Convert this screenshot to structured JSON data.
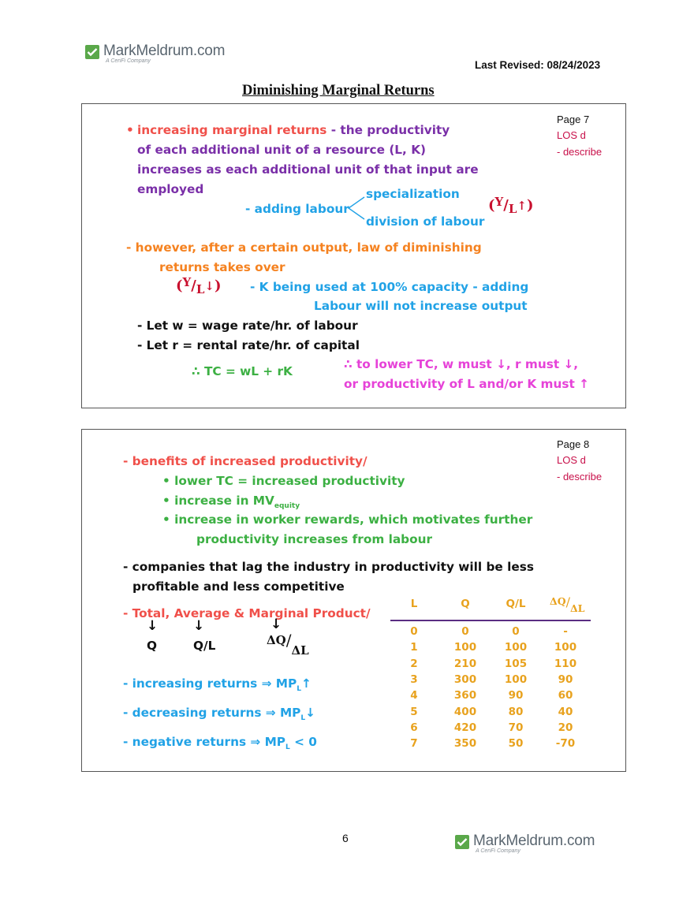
{
  "header": {
    "logo_name": "MarkMeldrum.com",
    "logo_sub": "A CeriFi Company",
    "last_revised": "Last Revised: 08/24/2023",
    "title": "Diminishing Marginal Returns"
  },
  "colors": {
    "red": "#f0504a",
    "purple": "#7a2fa8",
    "blue": "#21a2e6",
    "orange": "#f58220",
    "green": "#3cb043",
    "magenta": "#e642d8",
    "darkred": "#c8102e",
    "lossred": "#c8104a",
    "tableorange": "#e8a21e",
    "rulepurple": "#5a2d82",
    "logogreen": "#5aa84a"
  },
  "panel1": {
    "page": "Page 7",
    "los": "LOS d",
    "describe": "- describe",
    "bullet": "•",
    "inc_marg": "increasing marginal returns",
    "dash_the_prod": " - the productivity",
    "line2": "of each additional unit of a resource (L, K)",
    "line3": "increases as each additional unit of that input are",
    "line4": "employed",
    "adding_labour": "- adding labour",
    "specialization": "specialization",
    "division": "division of labour",
    "yl_up": {
      "y": "Y",
      "slash": "/",
      "l": "L",
      "arrow": "↑",
      "open": "(",
      "close": ")"
    },
    "however1": "- however, after a certain output, law of diminishing",
    "however2": "returns takes over",
    "yl_down": {
      "y": "Y",
      "slash": "/",
      "l": "L",
      "arrow": "↓",
      "open": "(",
      "close": ")"
    },
    "k_used1": "- K being used at 100% capacity - adding",
    "k_used2": "Labour will not increase output",
    "let_w": "- Let w = wage rate/hr. of labour",
    "let_r": "- Let r = rental rate/hr. of capital",
    "tc": "∴ TC = wL + rK",
    "lower1": "∴ to lower TC, w must ↓, r must ↓,",
    "lower2": "or productivity of L and/or K must ↑"
  },
  "panel2": {
    "page": "Page 8",
    "los": "LOS d",
    "describe": "- describe",
    "benefits": "- benefits of increased productivity/",
    "b1": "• lower TC = increased productivity",
    "b2_main": "• increase in MV",
    "b2_sub": "equity",
    "b3a": "• increase in worker rewards, which motivates further",
    "b3b": "productivity increases from labour",
    "companies1": "- companies that lag the industry in productivity will be less",
    "companies2": "profitable and less competitive",
    "tamp": "- Total, Average & Marginal Product/",
    "arrow": "↓",
    "q": "Q",
    "ql": "Q/L",
    "dq": "ΔQ",
    "slash": "/",
    "dl": "ΔL",
    "inc_ret": "- increasing returns ⇒ MP",
    "inc_sym": "↑",
    "dec_ret": "- decreasing returns ⇒ MP",
    "dec_sym": "↓",
    "neg_ret": "- negative returns ⇒ MP",
    "neg_sym": "< 0",
    "mp_sub": "L"
  },
  "table": {
    "headers": [
      "L",
      "Q",
      "Q/L"
    ],
    "header_dq": "ΔQ",
    "header_slash": "/",
    "header_dl": "ΔL",
    "rows": [
      [
        "0",
        "0",
        "0",
        "-"
      ],
      [
        "1",
        "100",
        "100",
        "100"
      ],
      [
        "2",
        "210",
        "105",
        "110"
      ],
      [
        "3",
        "300",
        "100",
        "90"
      ],
      [
        "4",
        "360",
        "90",
        "60"
      ],
      [
        "5",
        "400",
        "80",
        "40"
      ],
      [
        "6",
        "420",
        "70",
        "20"
      ],
      [
        "7",
        "350",
        "50",
        "-70"
      ]
    ]
  },
  "footer": {
    "page_number": "6",
    "logo_name": "MarkMeldrum.com",
    "logo_sub": "A CeriFi Company"
  }
}
